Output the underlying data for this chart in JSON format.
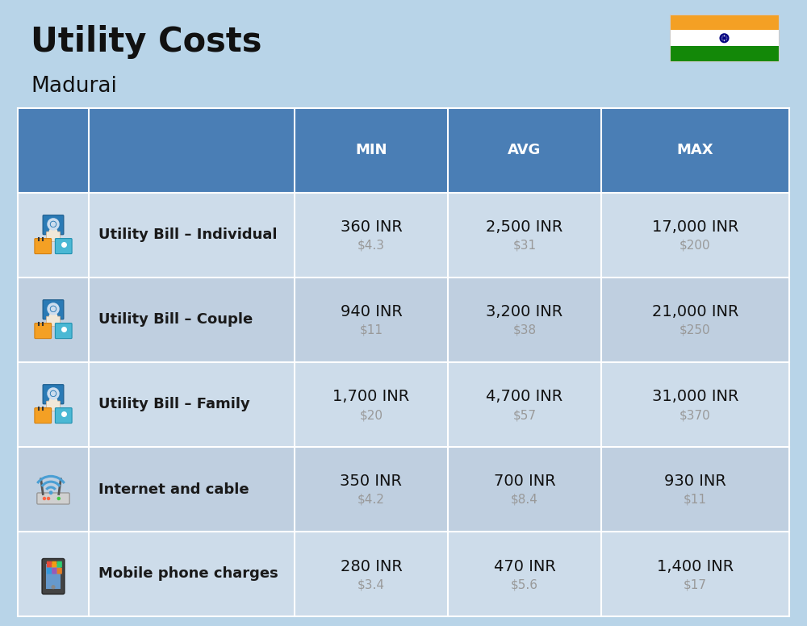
{
  "title": "Utility Costs",
  "subtitle": "Madurai",
  "background_color": "#b8d4e8",
  "header_bg_color": "#4a7eb5",
  "header_text_color": "#ffffff",
  "row_bg_even": "#cddcea",
  "row_bg_odd": "#bfcfe0",
  "divider_color": "#ffffff",
  "col_headers": [
    "MIN",
    "AVG",
    "MAX"
  ],
  "rows": [
    {
      "label": "Utility Bill – Individual",
      "min_inr": "360 INR",
      "min_usd": "$4.3",
      "avg_inr": "2,500 INR",
      "avg_usd": "$31",
      "max_inr": "17,000 INR",
      "max_usd": "$200",
      "icon": "utility"
    },
    {
      "label": "Utility Bill – Couple",
      "min_inr": "940 INR",
      "min_usd": "$11",
      "avg_inr": "3,200 INR",
      "avg_usd": "$38",
      "max_inr": "21,000 INR",
      "max_usd": "$250",
      "icon": "utility"
    },
    {
      "label": "Utility Bill – Family",
      "min_inr": "1,700 INR",
      "min_usd": "$20",
      "avg_inr": "4,700 INR",
      "avg_usd": "$57",
      "max_inr": "31,000 INR",
      "max_usd": "$370",
      "icon": "utility"
    },
    {
      "label": "Internet and cable",
      "min_inr": "350 INR",
      "min_usd": "$4.2",
      "avg_inr": "700 INR",
      "avg_usd": "$8.4",
      "max_inr": "930 INR",
      "max_usd": "$11",
      "icon": "internet"
    },
    {
      "label": "Mobile phone charges",
      "min_inr": "280 INR",
      "min_usd": "$3.4",
      "avg_inr": "470 INR",
      "avg_usd": "$5.6",
      "max_inr": "1,400 INR",
      "max_usd": "$17",
      "icon": "mobile"
    }
  ],
  "flag_colors": [
    "#f4a024",
    "#ffffff",
    "#138808"
  ],
  "flag_ashoka_color": "#000080",
  "title_fontsize": 30,
  "subtitle_fontsize": 19,
  "header_fontsize": 13,
  "label_fontsize": 13,
  "value_fontsize": 14,
  "subvalue_fontsize": 11,
  "text_color_dark": "#111111",
  "text_color_gray": "#999999",
  "text_color_label": "#1a1a1a"
}
